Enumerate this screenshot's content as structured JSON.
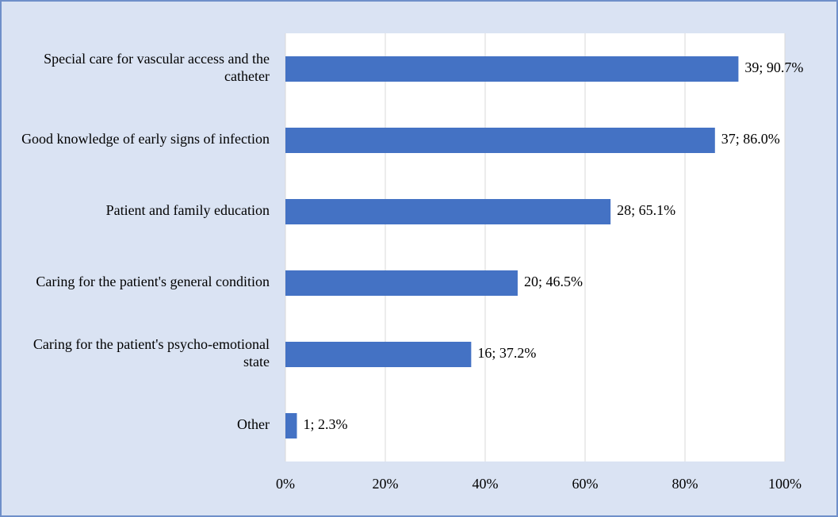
{
  "chart_data": {
    "type": "bar",
    "orientation": "horizontal",
    "categories": [
      "Special care for vascular access and the catheter",
      "Good knowledge of early signs of infection",
      "Patient and family education",
      "Caring for the patient's general condition",
      "Caring for the patient's psycho-emotional state",
      "Other"
    ],
    "values": [
      90.7,
      86.0,
      65.1,
      46.5,
      37.2,
      2.3
    ],
    "value_labels": [
      "39; 90.7%",
      "37; 86.0%",
      "28; 65.1%",
      "20; 46.5%",
      "16; 37.2%",
      "1; 2.3%"
    ],
    "color": "#4472c4",
    "xlim": [
      0,
      100
    ],
    "xticks": [
      {
        "value": 0,
        "label": "0%"
      },
      {
        "value": 20,
        "label": "20%"
      },
      {
        "value": 40,
        "label": "40%"
      },
      {
        "value": 60,
        "label": "60%"
      },
      {
        "value": 80,
        "label": "80%"
      },
      {
        "value": 100,
        "label": "100%"
      }
    ],
    "grid": true
  }
}
